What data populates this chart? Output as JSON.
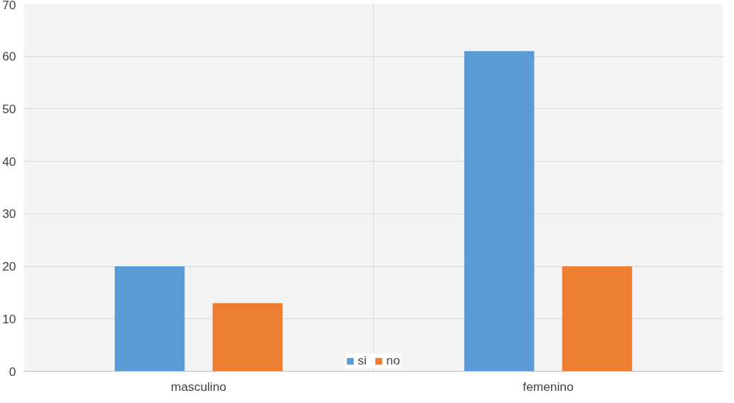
{
  "chart_data": {
    "type": "bar",
    "categories": [
      "masculino",
      "femenino"
    ],
    "series": [
      {
        "name": "si",
        "color": "#5b9bd5",
        "values": [
          20,
          61
        ]
      },
      {
        "name": "no",
        "color": "#ed7d31",
        "values": [
          13,
          20
        ]
      }
    ],
    "ylim": [
      0,
      70
    ],
    "yticks": [
      0,
      10,
      20,
      30,
      40,
      50,
      60,
      70
    ],
    "grid": true,
    "legend": "bottom"
  }
}
